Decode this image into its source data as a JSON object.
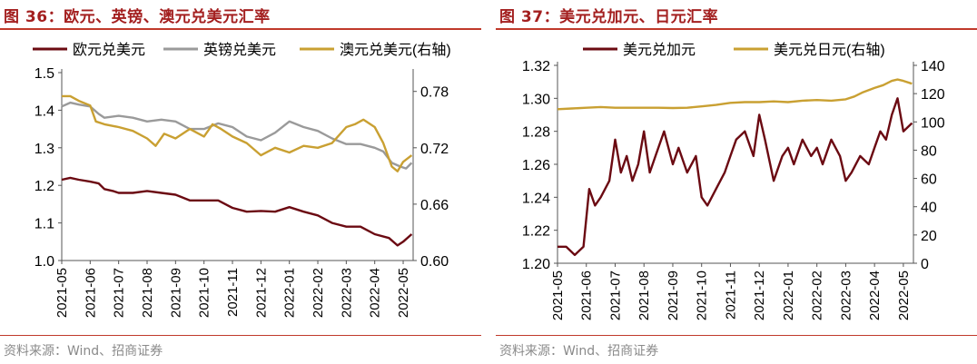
{
  "colors": {
    "maroon": "#6b0a12",
    "gray": "#9a9a9a",
    "gold": "#c9a032",
    "title_red": "#a31f1f"
  },
  "figures": [
    {
      "title": "图 36：欧元、英镑、澳元兑美元汇率",
      "source": "资料来源：Wind、招商证券",
      "chart_data": {
        "type": "line",
        "title": "欧元、英镑、澳元兑美元汇率",
        "x_ticks": [
          "2021-05",
          "2021-06",
          "2021-07",
          "2021-08",
          "2021-09",
          "2021-10",
          "2021-11",
          "2021-12",
          "2022-01",
          "2022-02",
          "2022-03",
          "2022-04",
          "2022-05"
        ],
        "y_left": {
          "ylim": [
            1.0,
            1.5
          ],
          "ticks": [
            "1.0",
            "1.1",
            "1.2",
            "1.3",
            "1.4",
            "1.5"
          ]
        },
        "y_right": {
          "ylim": [
            0.6,
            0.8
          ],
          "ticks": [
            "0.60",
            "0.66",
            "0.72",
            "0.78"
          ]
        },
        "series": [
          {
            "name": "欧元兑美元",
            "axis": "left",
            "color": "#6b0a12",
            "x": [
              0,
              0.3,
              0.6,
              1,
              1.3,
              1.5,
              1.8,
              2,
              2.5,
              3,
              3.5,
              4,
              4.5,
              5,
              5.5,
              6,
              6.5,
              7,
              7.5,
              8,
              8.5,
              9,
              9.5,
              10,
              10.5,
              11,
              11.5,
              11.8,
              12,
              12.3
            ],
            "values": [
              1.215,
              1.22,
              1.215,
              1.21,
              1.205,
              1.19,
              1.185,
              1.18,
              1.18,
              1.185,
              1.18,
              1.175,
              1.16,
              1.16,
              1.16,
              1.14,
              1.13,
              1.132,
              1.13,
              1.142,
              1.13,
              1.12,
              1.1,
              1.09,
              1.09,
              1.07,
              1.06,
              1.04,
              1.05,
              1.07
            ]
          },
          {
            "name": "英镑兑美元",
            "axis": "left",
            "color": "#9a9a9a",
            "x": [
              0,
              0.3,
              0.6,
              1,
              1.3,
              1.5,
              2,
              2.5,
              3,
              3.5,
              4,
              4.5,
              5,
              5.5,
              6,
              6.5,
              7,
              7.5,
              8,
              8.5,
              9,
              9.5,
              10,
              10.5,
              11,
              11.3,
              11.6,
              11.9,
              12.1,
              12.3
            ],
            "values": [
              1.41,
              1.42,
              1.415,
              1.41,
              1.39,
              1.38,
              1.385,
              1.38,
              1.37,
              1.375,
              1.37,
              1.35,
              1.35,
              1.365,
              1.355,
              1.33,
              1.32,
              1.34,
              1.37,
              1.355,
              1.345,
              1.325,
              1.31,
              1.31,
              1.3,
              1.29,
              1.26,
              1.25,
              1.245,
              1.26
            ]
          },
          {
            "name": "澳元兑美元(右轴)",
            "axis": "right",
            "color": "#c9a032",
            "x": [
              0,
              0.3,
              0.6,
              1,
              1.2,
              1.5,
              2,
              2.5,
              3,
              3.3,
              3.6,
              4,
              4.5,
              5,
              5.3,
              5.6,
              6,
              6.5,
              7,
              7.5,
              8,
              8.5,
              9,
              9.5,
              10,
              10.3,
              10.6,
              11,
              11.3,
              11.6,
              11.8,
              12,
              12.3
            ],
            "values": [
              0.775,
              0.775,
              0.77,
              0.765,
              0.748,
              0.745,
              0.742,
              0.738,
              0.73,
              0.722,
              0.735,
              0.73,
              0.74,
              0.732,
              0.745,
              0.74,
              0.732,
              0.725,
              0.712,
              0.72,
              0.715,
              0.722,
              0.72,
              0.725,
              0.742,
              0.745,
              0.75,
              0.742,
              0.725,
              0.7,
              0.695,
              0.705,
              0.712
            ]
          }
        ],
        "legend": "top"
      }
    },
    {
      "title": "图 37：美元兑加元、日元汇率",
      "source": "资料来源：Wind、招商证券",
      "chart_data": {
        "type": "line",
        "title": "美元兑加元、日元汇率",
        "x_ticks": [
          "2021-05",
          "2021-06",
          "2021-07",
          "2021-08",
          "2021-09",
          "2021-10",
          "2021-11",
          "2021-12",
          "2022-01",
          "2022-02",
          "2022-03",
          "2022-04",
          "2022-05"
        ],
        "y_left": {
          "ylim": [
            1.2,
            1.32
          ],
          "ticks": [
            "1.20",
            "1.22",
            "1.24",
            "1.26",
            "1.28",
            "1.30",
            "1.32"
          ]
        },
        "y_right": {
          "ylim": [
            0,
            140
          ],
          "ticks": [
            "0",
            "20",
            "40",
            "60",
            "80",
            "100",
            "120",
            "140"
          ]
        },
        "series": [
          {
            "name": "美元兑加元",
            "axis": "left",
            "color": "#6b0a12",
            "x": [
              0,
              0.3,
              0.6,
              0.9,
              1.1,
              1.3,
              1.5,
              1.8,
              2,
              2.2,
              2.4,
              2.6,
              2.8,
              3,
              3.2,
              3.4,
              3.7,
              4,
              4.2,
              4.5,
              4.8,
              5,
              5.2,
              5.5,
              5.8,
              6,
              6.2,
              6.5,
              6.8,
              7,
              7.2,
              7.5,
              7.8,
              8,
              8.2,
              8.5,
              8.8,
              9,
              9.2,
              9.5,
              9.8,
              10,
              10.2,
              10.5,
              10.8,
              11,
              11.2,
              11.4,
              11.6,
              11.8,
              12,
              12.3
            ],
            "values": [
              1.21,
              1.21,
              1.205,
              1.21,
              1.245,
              1.235,
              1.24,
              1.25,
              1.275,
              1.255,
              1.265,
              1.25,
              1.26,
              1.28,
              1.255,
              1.265,
              1.28,
              1.26,
              1.27,
              1.255,
              1.265,
              1.24,
              1.235,
              1.245,
              1.255,
              1.265,
              1.275,
              1.28,
              1.265,
              1.29,
              1.275,
              1.25,
              1.265,
              1.27,
              1.26,
              1.275,
              1.265,
              1.27,
              1.26,
              1.275,
              1.265,
              1.25,
              1.255,
              1.265,
              1.26,
              1.27,
              1.28,
              1.275,
              1.29,
              1.3,
              1.28,
              1.285
            ]
          },
          {
            "name": "美元兑日元(右轴)",
            "axis": "right",
            "color": "#c9a032",
            "x": [
              0,
              0.5,
              1,
              1.5,
              2,
              2.5,
              3,
              3.5,
              4,
              4.5,
              5,
              5.5,
              6,
              6.5,
              7,
              7.5,
              8,
              8.5,
              9,
              9.5,
              10,
              10.3,
              10.6,
              11,
              11.3,
              11.6,
              11.8,
              12,
              12.3
            ],
            "values": [
              109,
              109.5,
              110,
              110.5,
              110,
              110,
              110,
              110,
              109.8,
              110,
              111,
              112,
              113.5,
              114,
              114,
              114.5,
              114,
              115,
              115.5,
              115,
              116,
              118,
              121,
              124,
              126,
              129,
              130,
              129,
              127
            ]
          }
        ],
        "legend": "top"
      }
    }
  ]
}
